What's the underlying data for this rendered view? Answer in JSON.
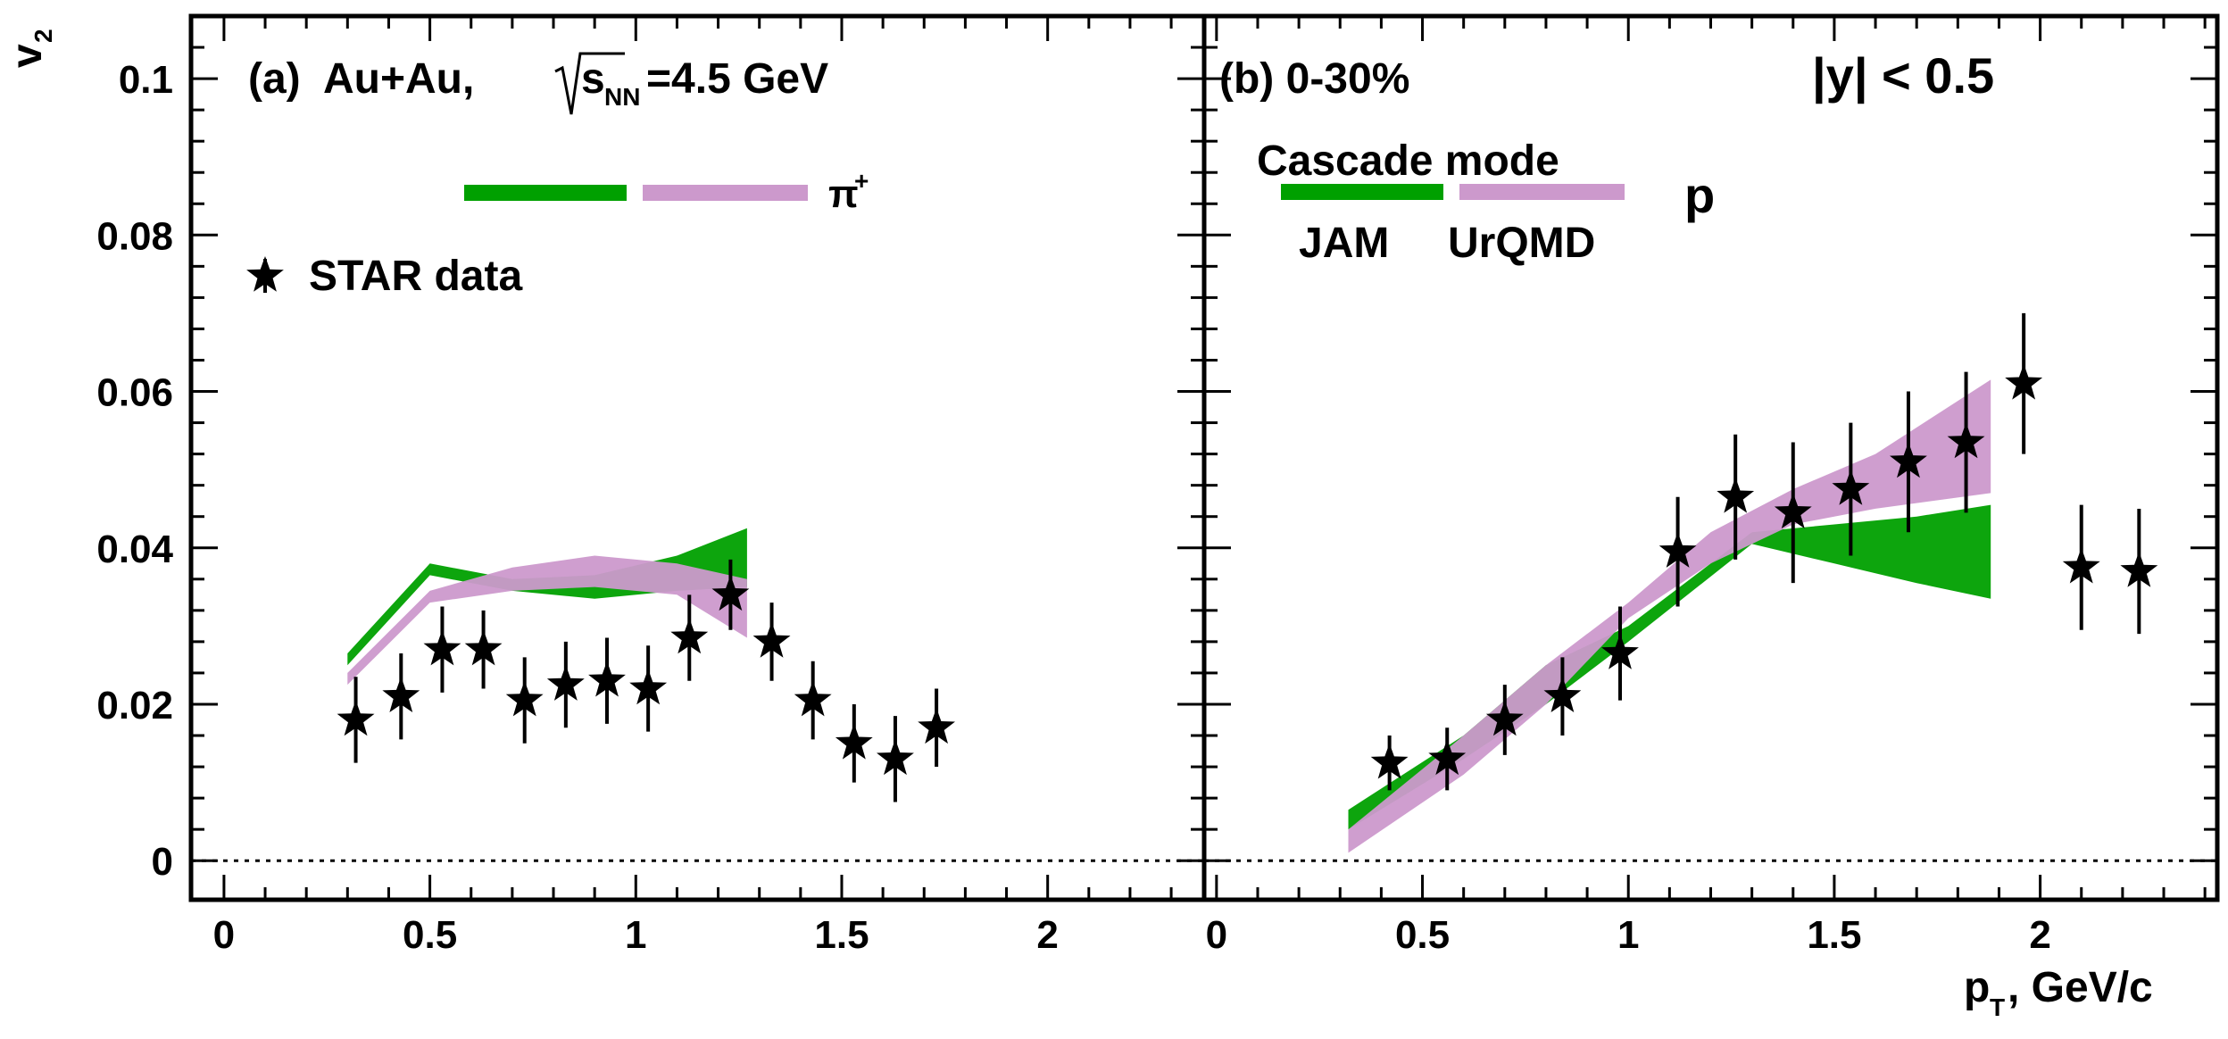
{
  "chart_data": [
    {
      "type": "scatter",
      "panel_label": "(a)",
      "title": "Au+Au,",
      "energy_label": {
        "root": "s",
        "sub": "NN",
        "rest": "=4.5 GeV"
      },
      "particle_label": "π",
      "particle_charge": "+",
      "xlabel": "",
      "ylabel": "v",
      "ylabel_sub": "2",
      "xlim": [
        -0.08,
        2.38
      ],
      "ylim": [
        -0.005,
        0.108
      ],
      "x_ticks": [
        0,
        0.5,
        1,
        1.5,
        2
      ],
      "x_tick_labels": [
        "0",
        "0.5",
        "1",
        "1.5",
        "2"
      ],
      "y_ticks": [
        0,
        0.02,
        0.04,
        0.06,
        0.08,
        0.1
      ],
      "y_tick_labels": [
        "0",
        "0.02",
        "0.04",
        "0.06",
        "0.08",
        "0.1"
      ],
      "legend": {
        "data_entry": "STAR data",
        "position": "top-left"
      },
      "series": [
        {
          "name": "STAR data",
          "kind": "points",
          "color": "#000000",
          "x": [
            0.32,
            0.43,
            0.53,
            0.63,
            0.73,
            0.83,
            0.93,
            1.03,
            1.13,
            1.23,
            1.33,
            1.43,
            1.53,
            1.63,
            1.73
          ],
          "y": [
            0.018,
            0.021,
            0.027,
            0.027,
            0.0205,
            0.0225,
            0.023,
            0.022,
            0.0285,
            0.034,
            0.028,
            0.0205,
            0.015,
            0.013,
            0.017
          ],
          "err": [
            0.0055,
            0.0055,
            0.0055,
            0.005,
            0.0055,
            0.0055,
            0.0055,
            0.0055,
            0.0055,
            0.0045,
            0.005,
            0.005,
            0.005,
            0.0055,
            0.005
          ]
        },
        {
          "name": "JAM",
          "kind": "band",
          "color": "#00a000",
          "x": [
            0.3,
            0.5,
            0.7,
            0.9,
            1.1,
            1.27
          ],
          "y_low": [
            0.025,
            0.0365,
            0.0345,
            0.0335,
            0.0345,
            0.035
          ],
          "y_high": [
            0.0265,
            0.038,
            0.036,
            0.0365,
            0.039,
            0.0425
          ]
        },
        {
          "name": "UrQMD",
          "kind": "band",
          "color": "#cc99cc",
          "x": [
            0.3,
            0.5,
            0.7,
            0.9,
            1.1,
            1.27
          ],
          "y_low": [
            0.0225,
            0.033,
            0.0345,
            0.035,
            0.034,
            0.0285
          ],
          "y_high": [
            0.024,
            0.0345,
            0.0375,
            0.039,
            0.038,
            0.036
          ]
        }
      ]
    },
    {
      "type": "scatter",
      "panel_label": "(b) 0-30%",
      "rapidity_label": "|y| < 0.5",
      "particle_label": "p",
      "mode_label": "Cascade mode",
      "model_labels": [
        "JAM",
        "UrQMD"
      ],
      "xlabel": "p",
      "xlabel_sub": "T",
      "xlabel_rest": ", GeV/c",
      "ylabel": "",
      "xlim": [
        -0.03,
        2.43
      ],
      "ylim": [
        -0.005,
        0.108
      ],
      "x_ticks": [
        0,
        0.5,
        1,
        1.5,
        2
      ],
      "x_tick_labels": [
        "0",
        "0.5",
        "1",
        "1.5",
        "2"
      ],
      "y_ticks": [
        0,
        0.02,
        0.04,
        0.06,
        0.08,
        0.1
      ],
      "legend": {
        "position": "top-left"
      },
      "series": [
        {
          "name": "STAR data",
          "kind": "points",
          "color": "#000000",
          "x": [
            0.42,
            0.56,
            0.7,
            0.84,
            0.98,
            1.12,
            1.26,
            1.4,
            1.54,
            1.68,
            1.82,
            1.96,
            2.1,
            2.24
          ],
          "y": [
            0.0125,
            0.013,
            0.018,
            0.021,
            0.0265,
            0.0395,
            0.0465,
            0.0445,
            0.0475,
            0.051,
            0.0535,
            0.061,
            0.0375,
            0.037
          ],
          "err": [
            0.0035,
            0.004,
            0.0045,
            0.005,
            0.006,
            0.007,
            0.008,
            0.009,
            0.0085,
            0.009,
            0.009,
            0.009,
            0.008,
            0.008
          ]
        },
        {
          "name": "JAM",
          "kind": "band",
          "color": "#00a000",
          "x": [
            0.32,
            0.6,
            0.8,
            1.0,
            1.3,
            1.5,
            1.7,
            1.88
          ],
          "y_low": [
            0.004,
            0.013,
            0.02,
            0.028,
            0.0405,
            0.038,
            0.0355,
            0.0335
          ],
          "y_high": [
            0.0065,
            0.016,
            0.025,
            0.03,
            0.042,
            0.043,
            0.044,
            0.0455
          ]
        },
        {
          "name": "UrQMD",
          "kind": "band",
          "color": "#cc99cc",
          "x": [
            0.32,
            0.6,
            0.8,
            1.0,
            1.2,
            1.4,
            1.6,
            1.88
          ],
          "y_low": [
            0.001,
            0.011,
            0.02,
            0.031,
            0.038,
            0.043,
            0.045,
            0.047
          ],
          "y_high": [
            0.004,
            0.016,
            0.025,
            0.033,
            0.042,
            0.0475,
            0.052,
            0.0615
          ]
        }
      ]
    }
  ]
}
